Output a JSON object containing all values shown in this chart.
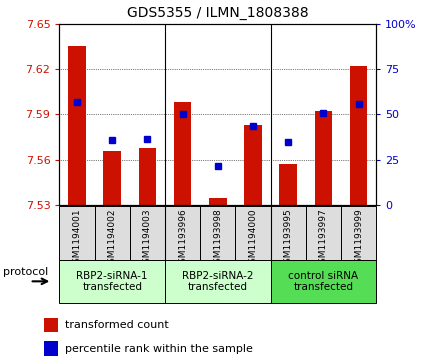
{
  "title": "GDS5355 / ILMN_1808388",
  "samples": [
    "GSM1194001",
    "GSM1194002",
    "GSM1194003",
    "GSM1193996",
    "GSM1193998",
    "GSM1194000",
    "GSM1193995",
    "GSM1193997",
    "GSM1193999"
  ],
  "red_values": [
    7.635,
    7.566,
    7.568,
    7.598,
    7.535,
    7.583,
    7.557,
    7.592,
    7.622
  ],
  "blue_values": [
    7.598,
    7.573,
    7.574,
    7.59,
    7.556,
    7.582,
    7.572,
    7.591,
    7.597
  ],
  "ylim_left": [
    7.53,
    7.65
  ],
  "ylim_right": [
    0,
    100
  ],
  "yticks_left": [
    7.53,
    7.56,
    7.59,
    7.62,
    7.65
  ],
  "yticks_right": [
    0,
    25,
    50,
    75,
    100
  ],
  "bar_color": "#CC1100",
  "dot_color": "#0000CC",
  "group_labels": [
    "RBP2-siRNA-1\ntransfected",
    "RBP2-siRNA-2\ntransfected",
    "control siRNA\ntransfected"
  ],
  "group_colors": [
    "#CCFFCC",
    "#CCFFCC",
    "#55DD55"
  ],
  "group_starts": [
    0,
    3,
    6
  ],
  "group_ends": [
    3,
    6,
    9
  ],
  "protocol_label": "protocol",
  "legend_red": "transformed count",
  "legend_blue": "percentile rank within the sample",
  "bar_width": 0.5,
  "base_value": 7.53
}
